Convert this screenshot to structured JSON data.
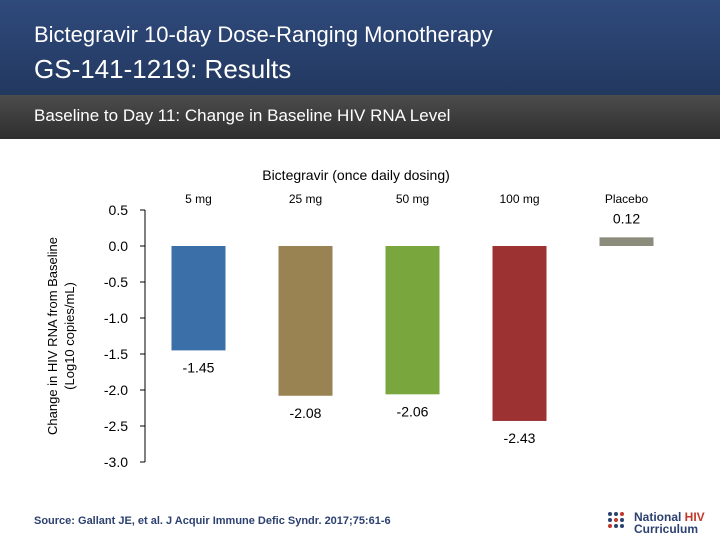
{
  "header": {
    "title_line1": "Bictegravir 10-day Dose-Ranging Monotherapy",
    "title_line2": "GS-141-1219: Results"
  },
  "subtitle": "Baseline to Day 11: Change in Baseline HIV RNA Level",
  "chart_data": {
    "type": "bar",
    "title": "Bictegravir (once daily dosing)",
    "ylabel_line1": "Change in HIV RNA from Baseline",
    "ylabel_line2": "(Log10 copies/mL)",
    "categories": [
      "5 mg",
      "25 mg",
      "50 mg",
      "100 mg",
      "Placebo"
    ],
    "values": [
      -1.45,
      -2.08,
      -2.06,
      -2.43,
      0.12
    ],
    "value_labels": [
      "-1.45",
      "-2.08",
      "-2.06",
      "-2.43",
      "0.12"
    ],
    "colors": [
      "#3a6fa8",
      "#9a8352",
      "#7aa63e",
      "#9c3232",
      "#8c8c7c"
    ],
    "ylim": [
      -3.0,
      0.5
    ],
    "yticks": [
      "0.5",
      "0.0",
      "-0.5",
      "-1.0",
      "-1.5",
      "-2.0",
      "-2.5",
      "-3.0"
    ],
    "grid": false
  },
  "source": "Source: Gallant JE, et al. J Acquir Immune Defic Syndr. 2017;75:61-6",
  "logo": {
    "line1_a": "National ",
    "line1_b": "HIV",
    "line2": "Curriculum"
  }
}
